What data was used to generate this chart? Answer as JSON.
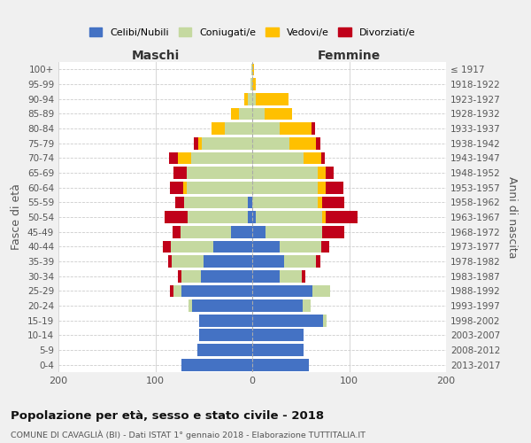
{
  "age_groups": [
    "0-4",
    "5-9",
    "10-14",
    "15-19",
    "20-24",
    "25-29",
    "30-34",
    "35-39",
    "40-44",
    "45-49",
    "50-54",
    "55-59",
    "60-64",
    "65-69",
    "70-74",
    "75-79",
    "80-84",
    "85-89",
    "90-94",
    "95-99",
    "100+"
  ],
  "birth_years": [
    "2013-2017",
    "2008-2012",
    "2003-2007",
    "1998-2002",
    "1993-1997",
    "1988-1992",
    "1983-1987",
    "1978-1982",
    "1973-1977",
    "1968-1972",
    "1963-1967",
    "1958-1962",
    "1953-1957",
    "1948-1952",
    "1943-1947",
    "1938-1942",
    "1933-1937",
    "1928-1932",
    "1923-1927",
    "1918-1922",
    "≤ 1917"
  ],
  "male_celibi": [
    73,
    57,
    55,
    55,
    62,
    73,
    53,
    50,
    40,
    22,
    5,
    5,
    0,
    0,
    0,
    0,
    0,
    0,
    0,
    0,
    0
  ],
  "male_coniugati": [
    0,
    0,
    0,
    0,
    4,
    8,
    20,
    33,
    44,
    52,
    62,
    65,
    68,
    68,
    63,
    52,
    28,
    14,
    5,
    2,
    1
  ],
  "male_vedovi": [
    0,
    0,
    0,
    0,
    0,
    0,
    0,
    0,
    0,
    0,
    0,
    0,
    3,
    0,
    14,
    4,
    14,
    8,
    3,
    0,
    0
  ],
  "male_divorziati": [
    0,
    0,
    0,
    0,
    0,
    4,
    4,
    4,
    8,
    8,
    23,
    9,
    14,
    13,
    9,
    4,
    0,
    0,
    0,
    0,
    0
  ],
  "female_celibi": [
    58,
    53,
    53,
    73,
    52,
    62,
    28,
    33,
    28,
    14,
    4,
    0,
    0,
    0,
    0,
    0,
    0,
    0,
    0,
    0,
    0
  ],
  "female_coniugati": [
    0,
    0,
    0,
    4,
    8,
    18,
    23,
    33,
    43,
    58,
    68,
    68,
    68,
    68,
    53,
    38,
    28,
    13,
    4,
    0,
    0
  ],
  "female_vedovi": [
    0,
    0,
    0,
    0,
    0,
    0,
    0,
    0,
    0,
    0,
    4,
    4,
    8,
    8,
    18,
    28,
    33,
    28,
    33,
    4,
    2
  ],
  "female_divorziati": [
    0,
    0,
    0,
    0,
    0,
    0,
    4,
    4,
    8,
    23,
    33,
    23,
    18,
    8,
    4,
    4,
    4,
    0,
    0,
    0,
    0
  ],
  "color_celibi": "#4472c4",
  "color_coniugati": "#c5d9a0",
  "color_vedovi": "#ffc000",
  "color_divorziati": "#c0001a",
  "title": "Popolazione per età, sesso e stato civile - 2018",
  "subtitle": "COMUNE DI CAVAGLIÀ (BI) - Dati ISTAT 1° gennaio 2018 - Elaborazione TUTTITALIA.IT",
  "xlabel_maschi": "Maschi",
  "xlabel_femmine": "Femmine",
  "ylabel": "Fasce di età",
  "ylabel_right": "Anni di nascita",
  "xlim": 200,
  "bg_color": "#f0f0f0",
  "plot_bg_color": "#ffffff"
}
